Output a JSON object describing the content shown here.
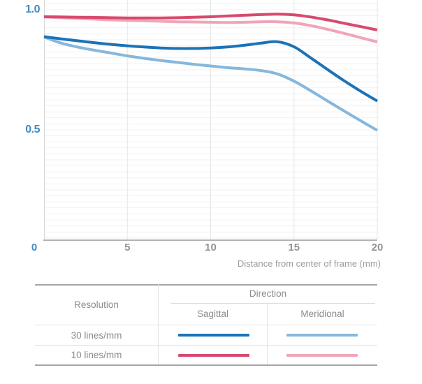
{
  "chart_data": {
    "type": "line",
    "xlabel": "Distance from center of frame (mm)",
    "ylabel": "",
    "xlim": [
      0,
      20
    ],
    "ylim": [
      0.04,
      1.04
    ],
    "grid": {
      "y_step": 0.025,
      "y_min": 0.05,
      "y_max": 1.025,
      "vertical_at": [
        5,
        10,
        15,
        20
      ]
    },
    "y_ticks": [
      {
        "label": "1.0",
        "value": 1.0
      },
      {
        "label": "0.5",
        "value": 0.5
      }
    ],
    "x_ticks": [
      {
        "label": "0",
        "value": 0,
        "accent": true
      },
      {
        "label": "5",
        "value": 5
      },
      {
        "label": "10",
        "value": 10
      },
      {
        "label": "15",
        "value": 15
      },
      {
        "label": "20",
        "value": 20
      }
    ],
    "accent_axis_color": "#3f8ac4",
    "x": [
      0,
      1,
      2,
      3,
      4,
      5,
      6,
      7,
      8,
      9,
      10,
      11,
      12,
      13,
      14,
      15,
      16,
      17,
      18,
      19,
      20
    ],
    "series": [
      {
        "key": "30lines-sagittal",
        "name": "30 lines/mm Sagittal",
        "color": "#1b73b7",
        "values": [
          0.888,
          0.879,
          0.871,
          0.863,
          0.856,
          0.85,
          0.845,
          0.841,
          0.839,
          0.839,
          0.841,
          0.845,
          0.852,
          0.861,
          0.867,
          0.846,
          0.8,
          0.752,
          0.705,
          0.661,
          0.62
        ]
      },
      {
        "key": "30lines-meridional",
        "name": "30 lines/mm Meridional",
        "color": "#86b7dc",
        "values": [
          0.887,
          0.862,
          0.845,
          0.832,
          0.82,
          0.808,
          0.798,
          0.789,
          0.781,
          0.773,
          0.766,
          0.759,
          0.754,
          0.747,
          0.733,
          0.703,
          0.663,
          0.621,
          0.579,
          0.538,
          0.498
        ]
      },
      {
        "key": "10lines-sagittal",
        "name": "10 lines/mm Sagittal",
        "color": "#d84a6d",
        "values": [
          0.971,
          0.97,
          0.969,
          0.968,
          0.967,
          0.966,
          0.966,
          0.966,
          0.967,
          0.969,
          0.971,
          0.974,
          0.977,
          0.98,
          0.982,
          0.979,
          0.97,
          0.958,
          0.944,
          0.93,
          0.916
        ]
      },
      {
        "key": "10lines-meridional",
        "name": "10 lines/mm Meridional",
        "color": "#f1a5b8",
        "values": [
          0.97,
          0.967,
          0.964,
          0.961,
          0.958,
          0.956,
          0.954,
          0.952,
          0.95,
          0.949,
          0.948,
          0.947,
          0.948,
          0.95,
          0.95,
          0.945,
          0.934,
          0.919,
          0.902,
          0.884,
          0.866
        ]
      }
    ],
    "legend_position": "bottom-table"
  },
  "legend_table": {
    "col_resolution": "Resolution",
    "col_direction": "Direction",
    "col_sagittal": "Sagittal",
    "col_meridional": "Meridional",
    "rows": [
      {
        "label": "30 lines/mm",
        "sagittal_color": "#1b73b7",
        "meridional_color": "#86b7dc"
      },
      {
        "label": "10 lines/mm",
        "sagittal_color": "#d84a6d",
        "meridional_color": "#f1a5b8"
      }
    ]
  }
}
